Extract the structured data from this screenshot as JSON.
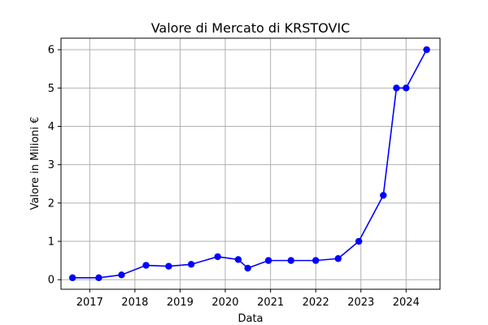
{
  "chart_data": {
    "type": "line",
    "title": "Valore di Mercato di KRSTOVIC",
    "xlabel": "Data",
    "ylabel": "Valore in Milioni €",
    "x_ticks": [
      "2017",
      "2018",
      "2019",
      "2020",
      "2021",
      "2022",
      "2023",
      "2024"
    ],
    "y_ticks": [
      "0",
      "1",
      "2",
      "3",
      "4",
      "5",
      "6"
    ],
    "xlim": [
      "2016-05-14",
      "2024-10-01"
    ],
    "ylim": [
      -0.25,
      6.3
    ],
    "grid": true,
    "series": [
      {
        "color": "#0000ff",
        "marker": "circle",
        "points": [
          {
            "x": "2016-08-15",
            "y": 0.05
          },
          {
            "x": "2017-03-15",
            "y": 0.05
          },
          {
            "x": "2017-09-15",
            "y": 0.125
          },
          {
            "x": "2018-04-01",
            "y": 0.375
          },
          {
            "x": "2018-10-01",
            "y": 0.35
          },
          {
            "x": "2019-04-01",
            "y": 0.4
          },
          {
            "x": "2019-11-01",
            "y": 0.6
          },
          {
            "x": "2020-04-15",
            "y": 0.525
          },
          {
            "x": "2020-07-01",
            "y": 0.3
          },
          {
            "x": "2020-12-15",
            "y": 0.5
          },
          {
            "x": "2021-06-15",
            "y": 0.5
          },
          {
            "x": "2022-01-01",
            "y": 0.5
          },
          {
            "x": "2022-07-01",
            "y": 0.55
          },
          {
            "x": "2022-12-15",
            "y": 1.0
          },
          {
            "x": "2023-07-01",
            "y": 2.2
          },
          {
            "x": "2023-10-15",
            "y": 5.0
          },
          {
            "x": "2024-01-01",
            "y": 5.0
          },
          {
            "x": "2024-06-15",
            "y": 6.0
          }
        ]
      }
    ]
  }
}
